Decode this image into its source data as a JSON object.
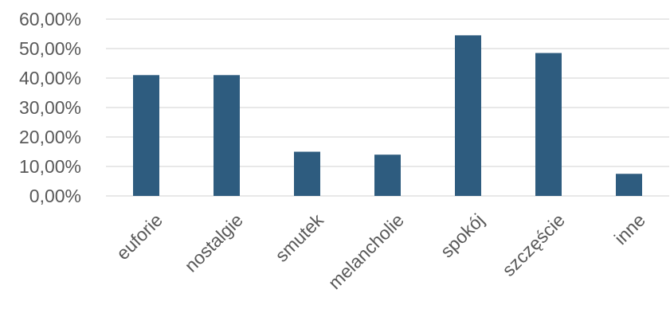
{
  "chart_data": {
    "type": "bar",
    "categories": [
      "euforie",
      "nostalgie",
      "smutek",
      "melancholie",
      "spokój",
      "szczęście",
      "inne"
    ],
    "values": [
      41.0,
      41.0,
      15.0,
      14.0,
      54.5,
      48.5,
      7.5
    ],
    "y_ticks": [
      "0,00%",
      "10,00%",
      "20,00%",
      "30,00%",
      "40,00%",
      "50,00%",
      "60,00%"
    ],
    "ylim": [
      0,
      60
    ],
    "y_unit": "%",
    "grid": true,
    "legend": "none",
    "bar_color": "#2e5c7f",
    "grid_color": "#d9d9d9",
    "label_color": "#595959"
  }
}
